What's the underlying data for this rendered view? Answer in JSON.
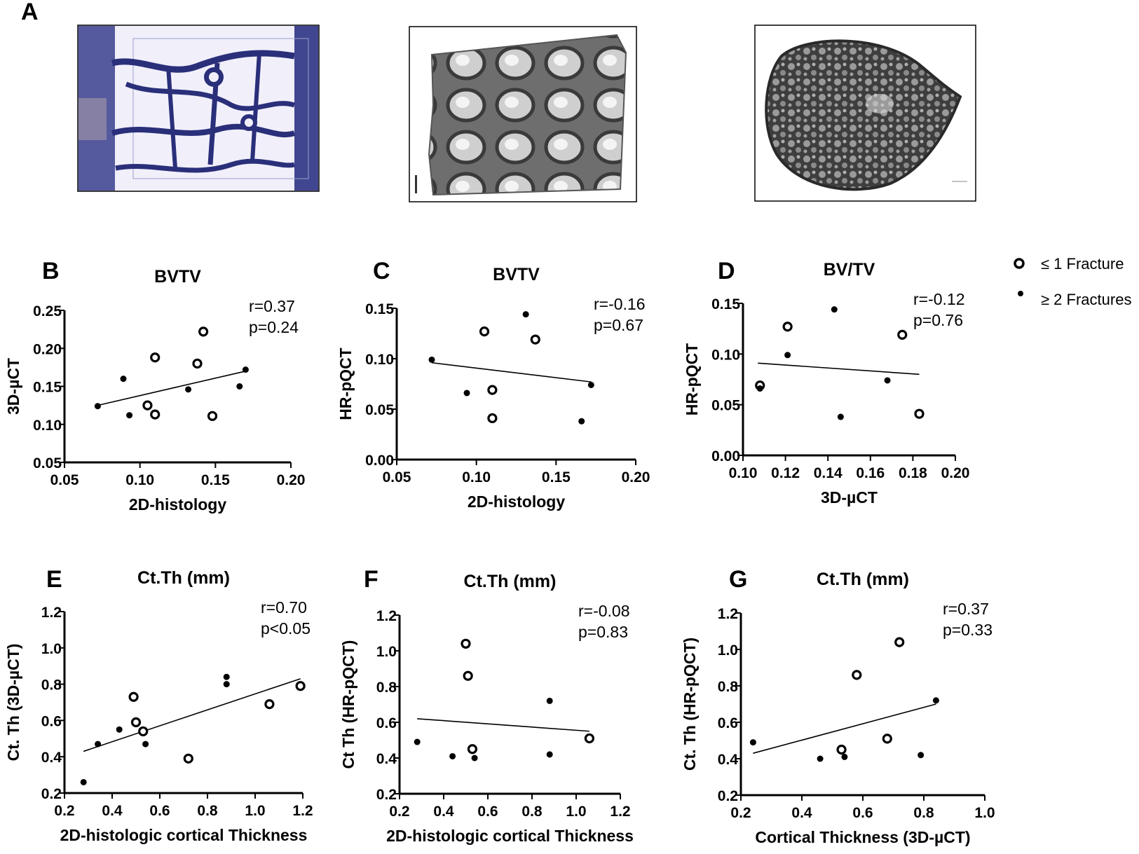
{
  "figure_label": "A",
  "legend": {
    "open_label": "≤ 1 Fracture",
    "filled_label": "≥ 2 Fractures"
  },
  "chart_data": [
    {
      "panel": "B",
      "type": "scatter",
      "title": "BVTV",
      "xlabel": "2D-histology",
      "ylabel": "3D-µCT",
      "xlim": [
        0.05,
        0.2
      ],
      "ylim": [
        0.05,
        0.25
      ],
      "xticks": [
        "0.05",
        "0.10",
        "0.15",
        "0.20"
      ],
      "yticks": [
        "0.05",
        "0.10",
        "0.15",
        "0.20",
        "0.25"
      ],
      "stats": [
        "r=0.37",
        "p=0.24"
      ],
      "series": [
        {
          "name": "≤ 1 Fracture",
          "marker": "open",
          "x": [
            0.105,
            0.11,
            0.11,
            0.138,
            0.142,
            0.148
          ],
          "y": [
            0.125,
            0.188,
            0.113,
            0.18,
            0.222,
            0.111
          ]
        },
        {
          "name": "≥ 2 Fractures",
          "marker": "filled",
          "x": [
            0.072,
            0.089,
            0.093,
            0.132,
            0.166,
            0.17
          ],
          "y": [
            0.124,
            0.16,
            0.112,
            0.146,
            0.15,
            0.172
          ]
        }
      ],
      "fit": {
        "x": [
          0.072,
          0.17
        ],
        "y": [
          0.125,
          0.17
        ]
      }
    },
    {
      "panel": "C",
      "type": "scatter",
      "title": "BVTV",
      "xlabel": "2D-histology",
      "ylabel": "HR-pQCT",
      "xlim": [
        0.05,
        0.2
      ],
      "ylim": [
        0.0,
        0.15
      ],
      "xticks": [
        "0.05",
        "0.10",
        "0.15",
        "0.20"
      ],
      "yticks": [
        "0.00",
        "0.05",
        "0.10",
        "0.15"
      ],
      "stats": [
        "r=-0.16",
        "p=0.67"
      ],
      "series": [
        {
          "name": "≤ 1 Fracture",
          "marker": "open",
          "x": [
            0.105,
            0.11,
            0.11,
            0.137
          ],
          "y": [
            0.127,
            0.069,
            0.041,
            0.119
          ]
        },
        {
          "name": "≥ 2 Fractures",
          "marker": "filled",
          "x": [
            0.072,
            0.094,
            0.131,
            0.166,
            0.172
          ],
          "y": [
            0.099,
            0.066,
            0.144,
            0.038,
            0.074
          ]
        }
      ],
      "fit": {
        "x": [
          0.072,
          0.172
        ],
        "y": [
          0.096,
          0.077
        ]
      }
    },
    {
      "panel": "D",
      "type": "scatter",
      "title": "BV/TV",
      "xlabel": "3D-µCT",
      "ylabel": "HR-pQCT",
      "xlim": [
        0.1,
        0.2
      ],
      "ylim": [
        0.0,
        0.15
      ],
      "xticks": [
        "0.10",
        "0.12",
        "0.14",
        "0.16",
        "0.18",
        "0.20"
      ],
      "yticks": [
        "0.00",
        "0.05",
        "0.10",
        "0.15"
      ],
      "stats": [
        "r=-0.12",
        "p=0.76"
      ],
      "series": [
        {
          "name": "≤ 1 Fracture",
          "marker": "open",
          "x": [
            0.108,
            0.121,
            0.175,
            0.183
          ],
          "y": [
            0.069,
            0.127,
            0.119,
            0.041
          ]
        },
        {
          "name": "≥ 2 Fractures",
          "marker": "filled",
          "x": [
            0.108,
            0.121,
            0.143,
            0.146,
            0.168
          ],
          "y": [
            0.066,
            0.099,
            0.144,
            0.038,
            0.074
          ]
        }
      ],
      "fit": {
        "x": [
          0.107,
          0.183
        ],
        "y": [
          0.091,
          0.08
        ]
      }
    },
    {
      "panel": "E",
      "type": "scatter",
      "title": "Ct.Th (mm)",
      "xlabel": "2D-histologic cortical Thickness",
      "ylabel": "Ct. Th (3D-µCT)",
      "xlim": [
        0.2,
        1.2
      ],
      "ylim": [
        0.2,
        1.2
      ],
      "xticks": [
        "0.2",
        "0.4",
        "0.6",
        "0.8",
        "1.0",
        "1.2"
      ],
      "yticks": [
        "0.2",
        "0.4",
        "0.6",
        "0.8",
        "1.0",
        "1.2"
      ],
      "stats": [
        "r=0.70",
        "p<0.05"
      ],
      "series": [
        {
          "name": "≤ 1 Fracture",
          "marker": "open",
          "x": [
            0.49,
            0.5,
            0.53,
            0.72,
            1.06,
            1.19
          ],
          "y": [
            0.73,
            0.59,
            0.54,
            0.39,
            0.69,
            0.79
          ]
        },
        {
          "name": "≥ 2 Fractures",
          "marker": "filled",
          "x": [
            0.28,
            0.34,
            0.43,
            0.54,
            0.88,
            0.88
          ],
          "y": [
            0.26,
            0.47,
            0.55,
            0.47,
            0.84,
            0.8
          ]
        }
      ],
      "fit": {
        "x": [
          0.28,
          1.19
        ],
        "y": [
          0.43,
          0.83
        ]
      }
    },
    {
      "panel": "F",
      "type": "scatter",
      "title": "Ct.Th (mm)",
      "xlabel": "2D-histologic cortical Thickness",
      "ylabel": "Ct Th (HR-pQCT)",
      "xlim": [
        0.2,
        1.2
      ],
      "ylim": [
        0.2,
        1.2
      ],
      "xticks": [
        "0.2",
        "0.4",
        "0.6",
        "0.8",
        "1.0",
        "1.2"
      ],
      "yticks": [
        "0.2",
        "0.4",
        "0.6",
        "0.8",
        "1.0",
        "1.2"
      ],
      "stats": [
        "r=-0.08",
        "p=0.83"
      ],
      "series": [
        {
          "name": "≤ 1 Fracture",
          "marker": "open",
          "x": [
            0.5,
            0.51,
            0.53,
            1.06
          ],
          "y": [
            1.04,
            0.86,
            0.45,
            0.51
          ]
        },
        {
          "name": "≥ 2 Fractures",
          "marker": "filled",
          "x": [
            0.28,
            0.44,
            0.54,
            0.88,
            0.88
          ],
          "y": [
            0.49,
            0.41,
            0.4,
            0.72,
            0.42
          ]
        }
      ],
      "fit": {
        "x": [
          0.28,
          1.06
        ],
        "y": [
          0.62,
          0.55
        ]
      }
    },
    {
      "panel": "G",
      "type": "scatter",
      "title": "Ct.Th (mm)",
      "xlabel": "Cortical Thickness  (3D-µCT)",
      "ylabel": "Ct. Th (HR-pQCT)",
      "xlim": [
        0.2,
        1.0
      ],
      "ylim": [
        0.2,
        1.2
      ],
      "xticks": [
        "0.2",
        "0.4",
        "0.6",
        "0.8",
        "1.0"
      ],
      "yticks": [
        "0.2",
        "0.4",
        "0.6",
        "0.8",
        "1.0",
        "1.2"
      ],
      "stats": [
        "r=0.37",
        "p=0.33"
      ],
      "series": [
        {
          "name": "≤ 1 Fracture",
          "marker": "open",
          "x": [
            0.53,
            0.58,
            0.68,
            0.72
          ],
          "y": [
            0.45,
            0.86,
            0.51,
            1.04
          ]
        },
        {
          "name": "≥ 2 Fractures",
          "marker": "filled",
          "x": [
            0.24,
            0.46,
            0.54,
            0.79,
            0.84
          ],
          "y": [
            0.49,
            0.4,
            0.41,
            0.42,
            0.72
          ]
        }
      ],
      "fit": {
        "x": [
          0.24,
          0.84
        ],
        "y": [
          0.43,
          0.7
        ]
      }
    }
  ]
}
